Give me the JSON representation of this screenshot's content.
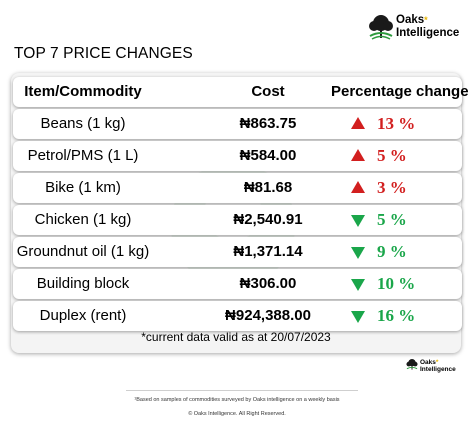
{
  "brand": {
    "name_line1": "Oaks",
    "name_line2": "Intelligence",
    "star": "*"
  },
  "title": "TOP 7 PRICE CHANGES",
  "table": {
    "headers": {
      "item": "Item/Commodity",
      "cost": "Cost",
      "change": "Percentage change"
    },
    "rows": [
      {
        "item": "Beans (1 kg)",
        "cost": "₦863.75",
        "direction": "up",
        "change": "13 %"
      },
      {
        "item": "Petrol/PMS (1 L)",
        "cost": "₦584.00",
        "direction": "up",
        "change": "5 %"
      },
      {
        "item": "Bike (1 km)",
        "cost": "₦81.68",
        "direction": "up",
        "change": "3 %"
      },
      {
        "item": "Chicken (1 kg)",
        "cost": "₦2,540.91",
        "direction": "down",
        "change": "5 %"
      },
      {
        "item": "Groundnut oil (1 kg)",
        "cost": "₦1,371.14",
        "direction": "down",
        "change": "9 %"
      },
      {
        "item": "Building block",
        "cost": "₦306.00",
        "direction": "down",
        "change": "10 %"
      },
      {
        "item": "Duplex (rent)",
        "cost": "₦924,388.00",
        "direction": "down",
        "change": "16 %"
      }
    ]
  },
  "note": "*current data valid as at 20/07/2023",
  "footnote": "¹Based on samples of commodities surveyed by Oaks intelligence on a weekly basis",
  "copyright": "© Oaks Intelligence. All Right Reserved.",
  "colors": {
    "up": "#d21f1f",
    "down": "#1aa64a",
    "brand_green": "#2e9b3e",
    "brand_yellow": "#e8b400"
  },
  "icons": {
    "logo": "oak-tree-icon",
    "up": "triangle-up-icon",
    "down": "triangle-down-icon"
  }
}
